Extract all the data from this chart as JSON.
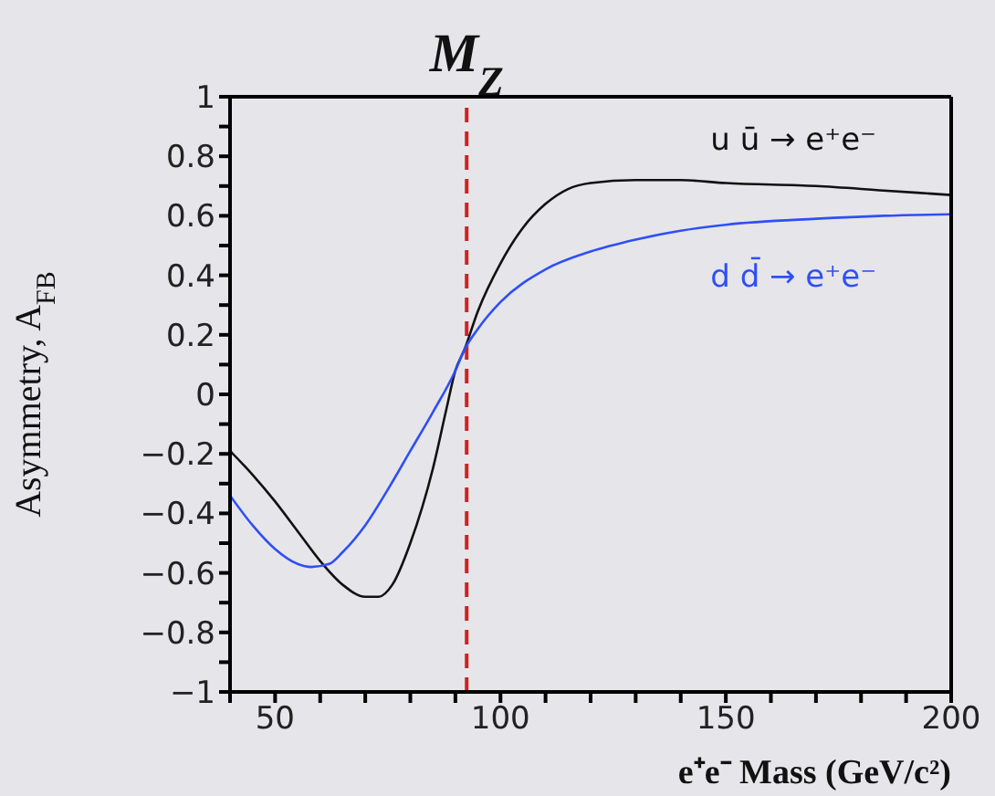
{
  "chart_data": {
    "type": "line",
    "xlabel": "e⁺e⁻ Mass (GeV/c²)",
    "ylabel": "Asymmetry, A$_{FB}$",
    "xlim": [
      40,
      200
    ],
    "ylim": [
      -1,
      1
    ],
    "xticks": [
      {
        "value": 40,
        "label": null
      },
      50,
      {
        "value": 60,
        "label": null
      },
      {
        "value": 70,
        "label": null
      },
      {
        "value": 80,
        "label": null
      },
      {
        "value": 90,
        "label": null
      },
      100,
      {
        "value": 110,
        "label": null
      },
      {
        "value": 120,
        "label": null
      },
      {
        "value": 130,
        "label": null
      },
      {
        "value": 140,
        "label": null
      },
      150,
      {
        "value": 160,
        "label": null
      },
      {
        "value": 170,
        "label": null
      },
      {
        "value": 180,
        "label": null
      },
      {
        "value": 190,
        "label": null
      },
      200
    ],
    "yticks": [
      -1,
      {
        "value": -0.9,
        "label": null
      },
      -0.8,
      {
        "value": -0.7,
        "label": null
      },
      -0.6,
      {
        "value": -0.5,
        "label": null
      },
      -0.4,
      {
        "value": -0.3,
        "label": null
      },
      -0.2,
      {
        "value": -0.1,
        "label": null
      },
      0,
      {
        "value": 0.1,
        "label": null
      },
      0.2,
      {
        "value": 0.3,
        "label": null
      },
      0.4,
      {
        "value": 0.5,
        "label": null
      },
      0.6,
      {
        "value": 0.7,
        "label": null
      },
      0.8,
      {
        "value": 0.9,
        "label": null
      },
      1
    ],
    "marker": "none",
    "line_style": "solid",
    "series": [
      {
        "name": "u ū → e⁺e⁻",
        "color": "#111111",
        "x": [
          40,
          45,
          50,
          55,
          60,
          65,
          70,
          73,
          76,
          80,
          85,
          88,
          90,
          92,
          95,
          100,
          105,
          110,
          115,
          120,
          130,
          140,
          150,
          170,
          185,
          200
        ],
        "values": [
          -0.19,
          -0.27,
          -0.36,
          -0.46,
          -0.56,
          -0.64,
          -0.68,
          -0.68,
          -0.64,
          -0.5,
          -0.25,
          -0.05,
          0.08,
          0.15,
          0.28,
          0.44,
          0.56,
          0.64,
          0.69,
          0.71,
          0.72,
          0.72,
          0.71,
          0.7,
          0.685,
          0.67
        ]
      },
      {
        "name": "d d̄ → e⁺e⁻",
        "color": "#2f4ff5",
        "x": [
          40,
          45,
          50,
          55,
          58,
          62,
          65,
          70,
          75,
          80,
          85,
          90,
          92,
          95,
          100,
          110,
          120,
          130,
          140,
          150,
          170,
          185,
          200
        ],
        "values": [
          -0.34,
          -0.44,
          -0.52,
          -0.57,
          -0.58,
          -0.57,
          -0.53,
          -0.44,
          -0.32,
          -0.19,
          -0.06,
          0.08,
          0.15,
          0.22,
          0.31,
          0.42,
          0.48,
          0.52,
          0.55,
          0.57,
          0.59,
          0.6,
          0.605
        ]
      }
    ],
    "ref_lines": [
      {
        "axis": "x",
        "value": 92.5,
        "label": "M$_{Z}$",
        "color": "#d42020",
        "line_style": "dashed"
      }
    ]
  }
}
